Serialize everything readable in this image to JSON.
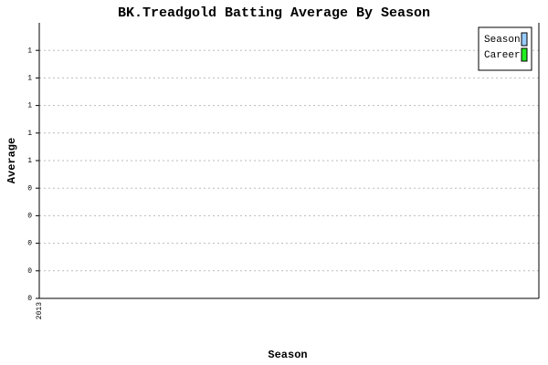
{
  "chart_data": {
    "type": "line",
    "title": "BK.Treadgold Batting Average By Season",
    "x_label": "Season",
    "y_label": "Average",
    "categories": [
      "2013"
    ],
    "series": [
      {
        "name": "Season",
        "color": "#99ccff",
        "values": [
          null
        ]
      },
      {
        "name": "Career",
        "color": "#22ee22",
        "values": [
          null
        ]
      }
    ],
    "ylim": [
      0,
      1
    ],
    "yticks": [
      0,
      {
        "value": 0.1,
        "label": "0"
      },
      {
        "value": 0.2,
        "label": "0"
      },
      {
        "value": 0.3,
        "label": "0"
      },
      {
        "value": 0.4,
        "label": "0"
      },
      {
        "value": 0.5,
        "label": "1"
      },
      {
        "value": 0.6,
        "label": "1"
      },
      {
        "value": 0.7,
        "label": "1"
      },
      {
        "value": 0.8,
        "label": "1"
      },
      {
        "value": 0.9,
        "label": "1"
      }
    ],
    "grid": true,
    "legend": "upper-right"
  }
}
